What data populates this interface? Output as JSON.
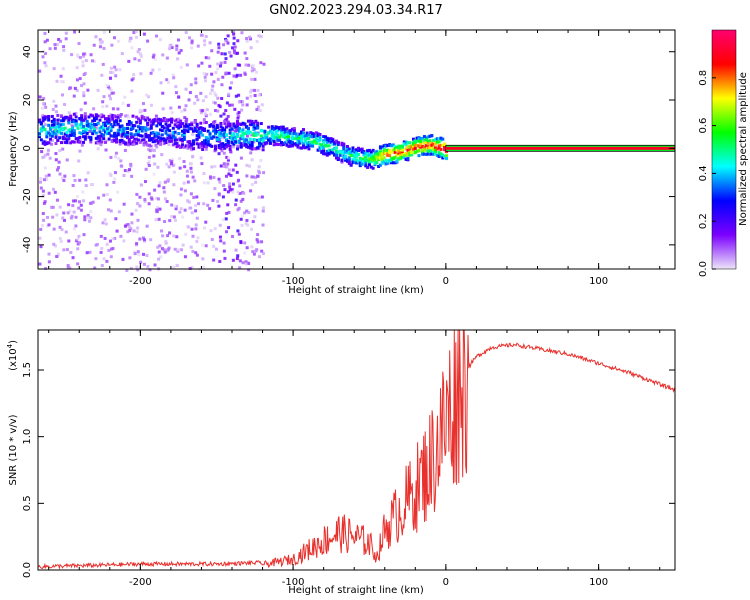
{
  "title": "GN02.2023.294.03.34.R17",
  "chart_data": [
    {
      "type": "heatmap",
      "xlabel": "Height of straight line (km)",
      "ylabel": "Frequency (Hz)",
      "xlim": [
        -267,
        150
      ],
      "ylim": [
        -50,
        49
      ],
      "xticks": [
        -200,
        -100,
        0,
        100
      ],
      "xtick_labels": [
        "-200",
        "-100",
        "0",
        "100"
      ],
      "yticks": [
        -40,
        -20,
        0,
        20,
        40
      ],
      "ytick_labels": [
        "-40",
        "-20",
        "0",
        "20",
        "40"
      ],
      "colorbar": {
        "label": "Normalized spectral amplitude",
        "range": [
          0,
          1
        ],
        "ticks": [
          0.0,
          0.2,
          0.4,
          0.6,
          0.8
        ],
        "tick_labels": [
          "0.0",
          "0.2",
          "0.4",
          "0.6",
          "0.8"
        ],
        "colors": [
          "#ede5f8",
          "#7b00ff",
          "#0000ff",
          "#00ffff",
          "#00ff00",
          "#ffff00",
          "#ff0000",
          "#ff0070"
        ]
      },
      "ridge": {
        "x": [
          -267,
          -240,
          -200,
          -160,
          -130,
          -110,
          -100,
          -90,
          -80,
          -70,
          -60,
          -50,
          -40,
          -30,
          -20,
          -10,
          0,
          150
        ],
        "freq": [
          8,
          9,
          8,
          6,
          6,
          6,
          5,
          4,
          2,
          -1,
          -3,
          -4,
          -2,
          -1,
          1,
          2,
          0,
          0
        ],
        "intensity": [
          0.45,
          0.45,
          0.35,
          0.35,
          0.5,
          0.55,
          0.5,
          0.55,
          0.55,
          0.5,
          0.55,
          0.6,
          0.85,
          0.85,
          0.9,
          0.9,
          1.0,
          1.0
        ]
      },
      "grid": false
    },
    {
      "type": "line",
      "xlabel": "Height of straight line (km)",
      "ylabel": "SNR (10 * v/v)",
      "scale_label": "(x10",
      "scale_exp": "4",
      "scale_close": ")",
      "xlim": [
        -267,
        150
      ],
      "ylim": [
        0,
        1.8
      ],
      "xticks": [
        -200,
        -100,
        0,
        100
      ],
      "xtick_labels": [
        "-200",
        "-100",
        "0",
        "100"
      ],
      "yticks": [
        0,
        0.5,
        1.0,
        1.5
      ],
      "ytick_labels": [
        "0.0",
        "0.5",
        "1.0",
        "1.5"
      ],
      "series": [
        {
          "color": "#e8302c",
          "x": [
            -267,
            -230,
            -200,
            -150,
            -120,
            -100,
            -90,
            -80,
            -70,
            -60,
            -50,
            -45,
            -40,
            -30,
            -20,
            -10,
            0,
            10,
            20,
            30,
            45,
            60,
            80,
            100,
            120,
            150
          ],
          "y": [
            0.01,
            0.02,
            0.03,
            0.03,
            0.04,
            0.08,
            0.15,
            0.22,
            0.28,
            0.25,
            0.2,
            0.1,
            0.3,
            0.45,
            0.6,
            0.8,
            1.1,
            1.45,
            1.6,
            1.67,
            1.69,
            1.66,
            1.62,
            1.55,
            1.48,
            1.35
          ]
        }
      ],
      "grid": false
    }
  ]
}
